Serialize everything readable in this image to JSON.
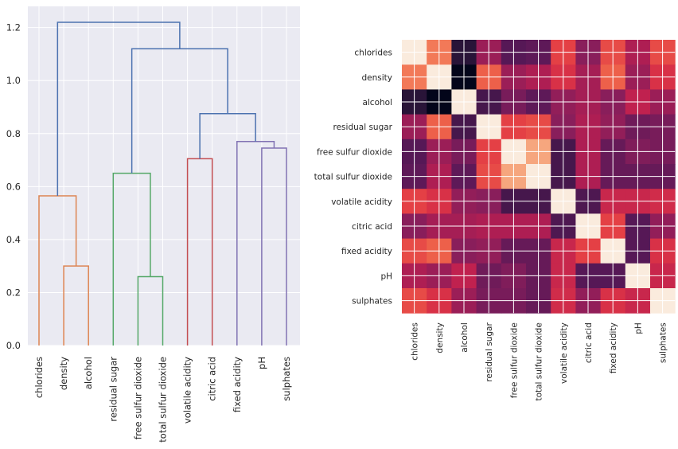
{
  "chart_data": [
    {
      "type": "dendrogram",
      "title": "",
      "xlabel": "",
      "ylabel": "",
      "ylim": [
        0,
        1.28
      ],
      "yticks": [
        "0.0",
        "0.2",
        "0.4",
        "0.6",
        "0.8",
        "1.0",
        "1.2"
      ],
      "ytick_values": [
        0,
        0.2,
        0.4,
        0.6,
        0.8,
        1.0,
        1.2
      ],
      "leaves": [
        "chlorides",
        "density",
        "alcohol",
        "residual sugar",
        "free sulfur dioxide",
        "total sulfur dioxide",
        "volatile acidity",
        "citric acid",
        "fixed acidity",
        "pH",
        "sulphates"
      ],
      "grid": true,
      "links": [
        {
          "left": "L1",
          "right": "L2",
          "height": 0.3,
          "cluster": "orange"
        },
        {
          "left": "L0",
          "right": "N0",
          "height": 0.565,
          "cluster": "orange"
        },
        {
          "left": "L4",
          "right": "L5",
          "height": 0.26,
          "cluster": "green"
        },
        {
          "left": "L3",
          "right": "N2",
          "height": 0.65,
          "cluster": "green"
        },
        {
          "left": "L6",
          "right": "L7",
          "height": 0.705,
          "cluster": "red"
        },
        {
          "left": "L9",
          "right": "L10",
          "height": 0.745,
          "cluster": "purple"
        },
        {
          "left": "L8",
          "right": "N5",
          "height": 0.77,
          "cluster": "purple"
        },
        {
          "left": "N4",
          "right": "N6",
          "height": 0.875,
          "cluster": "blue"
        },
        {
          "left": "N3",
          "right": "N7",
          "height": 1.12,
          "cluster": "blue"
        },
        {
          "left": "N1",
          "right": "N8",
          "height": 1.22,
          "cluster": "blue"
        }
      ],
      "colors": {
        "orange": "#dd8452",
        "green": "#55a868",
        "red": "#c44e52",
        "purple": "#8172b3",
        "blue": "#4c72b0",
        "axes_bg": "#eaeaf2",
        "grid": "#ffffff"
      }
    },
    {
      "type": "heatmap",
      "title": "",
      "labels": [
        "chlorides",
        "density",
        "alcohol",
        "residual sugar",
        "free sulfur dioxide",
        "total sulfur dioxide",
        "volatile acidity",
        "citric acid",
        "fixed acidity",
        "pH",
        "sulphates"
      ],
      "values": [
        [
          1.0,
          0.65,
          -0.75,
          -0.05,
          -0.45,
          -0.4,
          0.4,
          -0.15,
          0.45,
          0.05,
          0.45
        ],
        [
          0.65,
          1.0,
          -1.0,
          0.55,
          -0.05,
          0.05,
          0.3,
          0.0,
          0.55,
          -0.05,
          0.3
        ],
        [
          -0.75,
          -1.0,
          1.0,
          -0.55,
          -0.25,
          -0.4,
          -0.1,
          0.0,
          -0.15,
          0.15,
          -0.05
        ],
        [
          -0.05,
          0.55,
          -0.55,
          1.0,
          0.4,
          0.45,
          -0.15,
          0.05,
          -0.1,
          -0.3,
          -0.25
        ],
        [
          -0.45,
          -0.05,
          -0.25,
          0.4,
          1.0,
          0.8,
          -0.55,
          0.05,
          -0.35,
          -0.2,
          -0.25
        ],
        [
          -0.4,
          0.05,
          -0.4,
          0.45,
          0.8,
          1.0,
          -0.55,
          0.05,
          -0.35,
          -0.35,
          -0.35
        ],
        [
          0.4,
          0.3,
          -0.1,
          -0.15,
          -0.55,
          -0.55,
          1.0,
          -0.5,
          0.2,
          0.2,
          0.25
        ],
        [
          -0.15,
          0.0,
          0.0,
          0.05,
          0.05,
          0.05,
          -0.5,
          1.0,
          0.4,
          -0.45,
          -0.1
        ],
        [
          0.45,
          0.55,
          -0.15,
          -0.1,
          -0.35,
          -0.35,
          0.2,
          0.4,
          1.0,
          -0.45,
          0.3
        ],
        [
          0.05,
          -0.05,
          0.15,
          -0.3,
          -0.2,
          -0.35,
          0.2,
          -0.45,
          -0.45,
          1.0,
          0.2
        ],
        [
          0.45,
          0.3,
          -0.05,
          -0.25,
          -0.25,
          -0.35,
          0.25,
          -0.1,
          0.3,
          0.2,
          1.0
        ]
      ],
      "vmin": -1.0,
      "vmax": 1.0,
      "colormap": "rocket",
      "grid": true
    }
  ]
}
